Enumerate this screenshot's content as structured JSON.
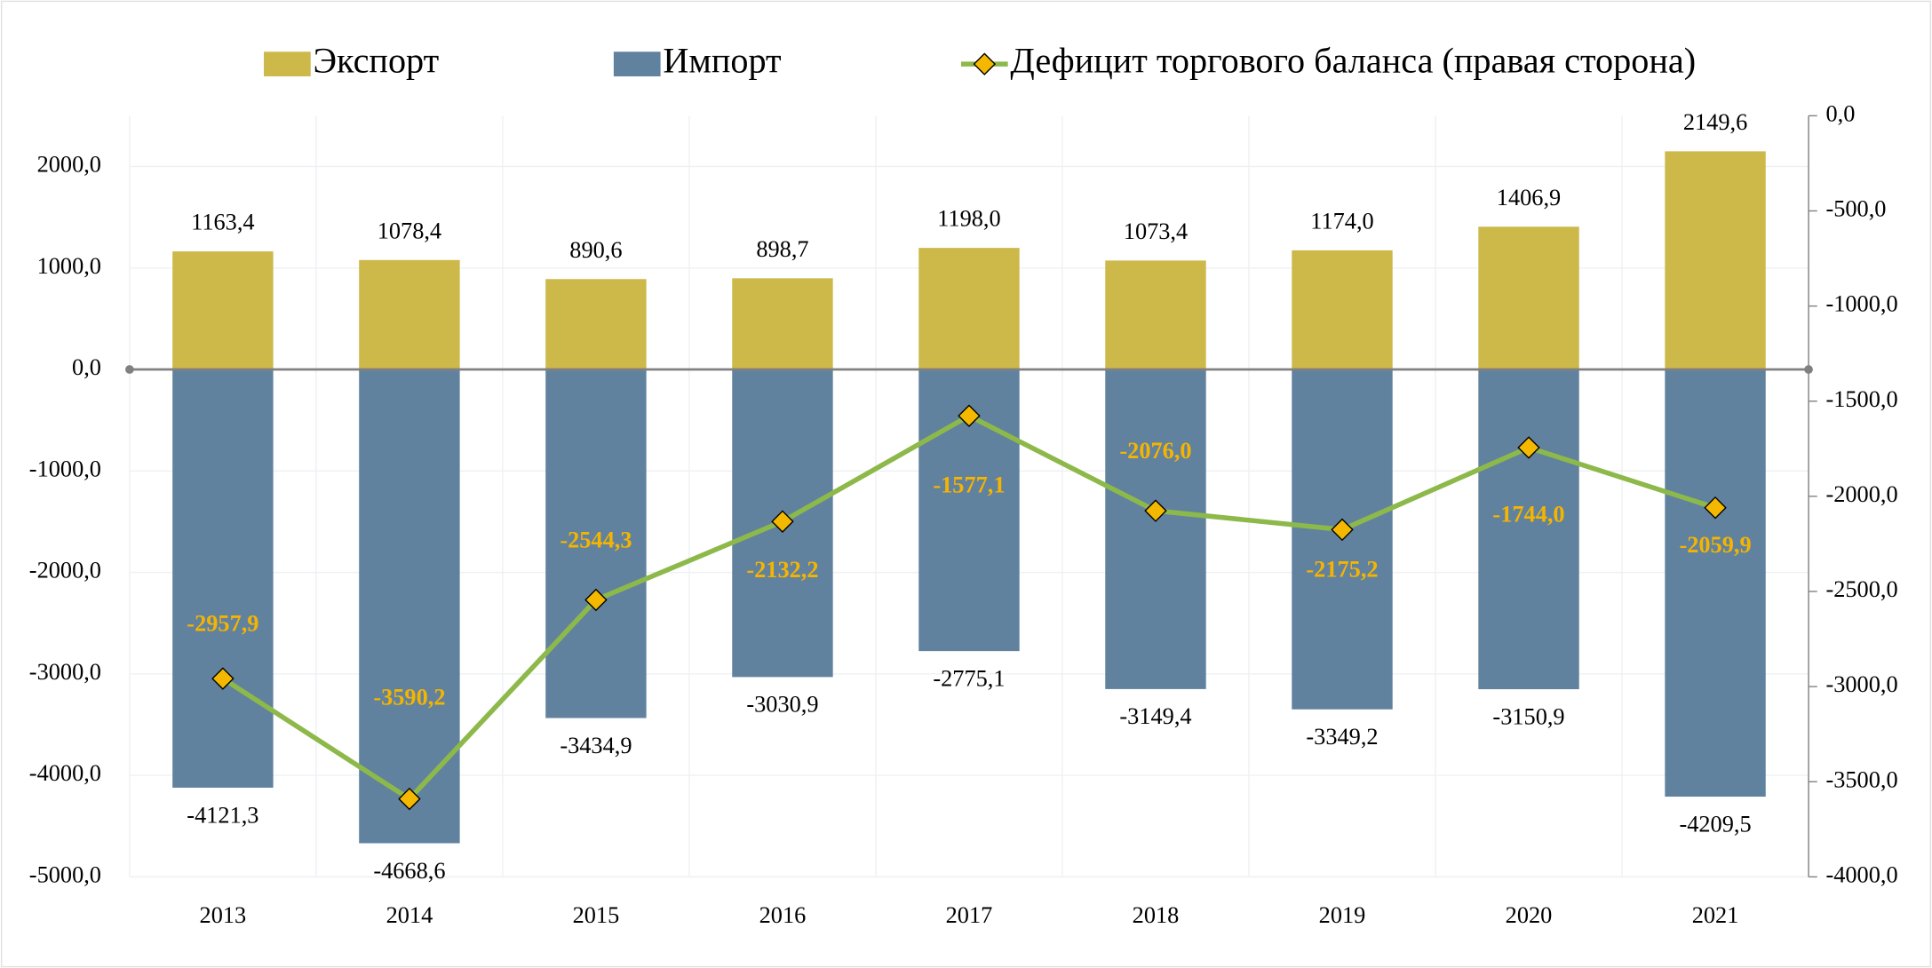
{
  "chart_data": {
    "type": "bar",
    "categories": [
      "2013",
      "2014",
      "2015",
      "2016",
      "2017",
      "2018",
      "2019",
      "2020",
      "2021"
    ],
    "series": [
      {
        "name": "Экспорт",
        "color": "#cdb84a",
        "values": [
          1163.4,
          1078.4,
          890.6,
          898.7,
          1198.0,
          1073.4,
          1174.0,
          1406.9,
          2149.6
        ],
        "value_labels": [
          "1163,4",
          "1078,4",
          "890,6",
          "898,7",
          "1198,0",
          "1073,4",
          "1174,0",
          "1406,9",
          "2149,6"
        ]
      },
      {
        "name": "Импорт",
        "color": "#60829f",
        "values": [
          -4121.3,
          -4668.6,
          -3434.9,
          -3030.9,
          -2775.1,
          -3149.4,
          -3349.2,
          -3150.9,
          -4209.5
        ],
        "value_labels": [
          "-4121,3",
          "-4668,6",
          "-3434,9",
          "-3030,9",
          "-2775,1",
          "-3149,4",
          "-3349,2",
          "-3150,9",
          "-4209,5"
        ]
      },
      {
        "name": "Дефицит торгового баланса (правая сторона)",
        "type": "line",
        "axis": "y2",
        "color": "#8db84a",
        "marker_color": "#f5b800",
        "values": [
          -2957.9,
          -3590.2,
          -2544.3,
          -2132.2,
          -1577.1,
          -2076.0,
          -2175.2,
          -1744.0,
          -2059.9
        ],
        "value_labels": [
          "-2957,9",
          "-3590,2",
          "-2544,3",
          "-2132,2",
          "-1577,1",
          "-2076,0",
          "-2175,2",
          "-1744,0",
          "-2059,9"
        ]
      }
    ],
    "ylim": [
      -5000,
      2500
    ],
    "yticks": [
      {
        "value": -5000,
        "label": "-5000,0"
      },
      {
        "value": -4000,
        "label": "-4000,0"
      },
      {
        "value": -3000,
        "label": "-3000,0"
      },
      {
        "value": -2000,
        "label": "-2000,0"
      },
      {
        "value": -1000,
        "label": "-1000,0"
      },
      {
        "value": 0,
        "label": "0,0"
      },
      {
        "value": 1000,
        "label": "1000,0"
      },
      {
        "value": 2000,
        "label": "2000,0"
      }
    ],
    "y2lim": [
      -4000,
      0
    ],
    "y2ticks": [
      {
        "value": -4000,
        "label": "-4000,0"
      },
      {
        "value": -3500,
        "label": "-3500,0"
      },
      {
        "value": -3000,
        "label": "-3000,0"
      },
      {
        "value": -2500,
        "label": "-2500,0"
      },
      {
        "value": -2000,
        "label": "-2000,0"
      },
      {
        "value": -1500,
        "label": "-1500,0"
      },
      {
        "value": -1000,
        "label": "-1000,0"
      },
      {
        "value": -500,
        "label": "-500,0"
      },
      {
        "value": 0,
        "label": "0,0"
      }
    ],
    "grid": true,
    "legend": "top"
  }
}
